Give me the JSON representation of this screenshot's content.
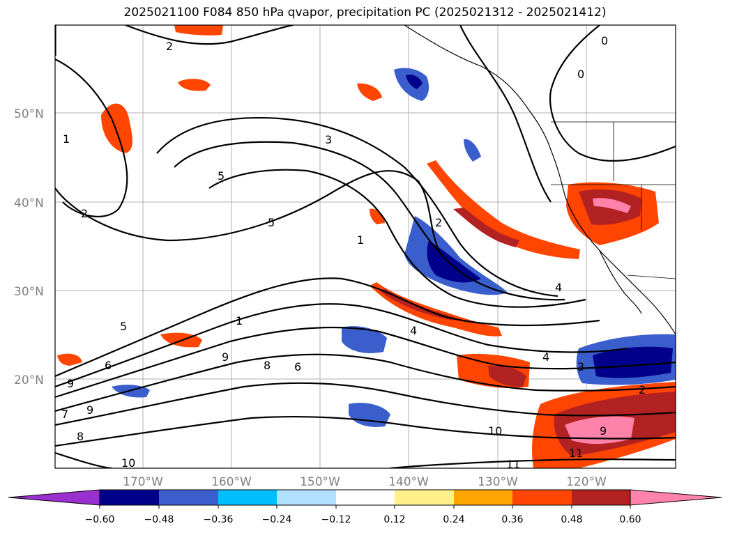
{
  "title": "2025021100 F084 850 hPa qvapor, precipitation PC (2025021312 - 2025021412)",
  "map": {
    "lat_labels": [
      "50°N",
      "40°N",
      "30°N",
      "20°N"
    ],
    "lon_labels": [
      "170°W",
      "160°W",
      "150°W",
      "140°W",
      "130°W",
      "120°W"
    ],
    "contour_labels": [
      "2",
      "0",
      "3",
      "1",
      "5",
      "5",
      "2",
      "1",
      "2",
      "4",
      "4",
      "4",
      "3",
      "2",
      "5",
      "9",
      "8",
      "6",
      "6",
      "9",
      "7",
      "8",
      "9",
      "10",
      "11",
      "9",
      "11",
      "10",
      "0",
      "1"
    ],
    "colors": {
      "neg_060": "#9b30d0",
      "neg_048": "#00008b",
      "neg_036": "#3a5fcd",
      "neg_024": "#00bfff",
      "neg_012": "#b0e2ff",
      "pos_012": "#fff08a",
      "pos_024": "#ffa500",
      "pos_036": "#ff4500",
      "pos_048": "#b22222",
      "pos_060": "#ff82ab"
    }
  },
  "colorbar": {
    "ticks": [
      "−0.60",
      "−0.48",
      "−0.36",
      "−0.24",
      "−0.12",
      "0.12",
      "0.24",
      "0.36",
      "0.48",
      "0.60"
    ],
    "colors": [
      "#9b30d0",
      "#00008b",
      "#3a5fcd",
      "#00bfff",
      "#b0e2ff",
      "#ffffff",
      "#fff08a",
      "#ffa500",
      "#ff4500",
      "#b22222",
      "#ff82ab"
    ]
  }
}
